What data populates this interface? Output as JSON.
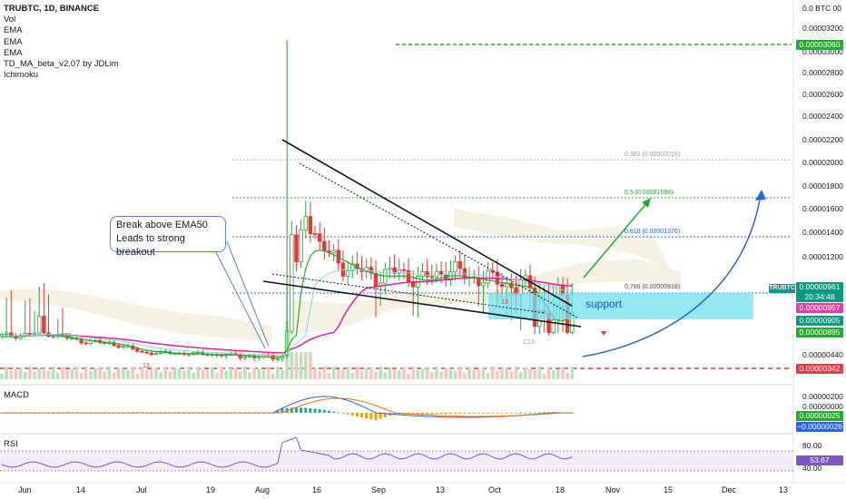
{
  "legend": {
    "symbol": "TRUBTC, 1D, BINANCE",
    "indicators": [
      "Vol",
      "EMA",
      "EMA",
      "EMA",
      "TD_MA_beta_v2.07 by JDLim",
      "Ichimoku"
    ]
  },
  "price_scale": {
    "unit": "0.0 BTC 00",
    "ticks": [
      "0.00003200",
      "0.00003000",
      "0.00002800",
      "0.00002600",
      "0.00002400",
      "0.00002200",
      "0.00002000",
      "0.00001800",
      "0.00001600",
      "0.00001400",
      "0.00001200",
      "0.00000440"
    ]
  },
  "badges": [
    {
      "text": "0.00003060",
      "color": "#22ab2f"
    },
    {
      "text": "0.00000961",
      "color": "#089981"
    },
    {
      "text": "20:34:48",
      "color": "#089981"
    },
    {
      "text": "0.00000957",
      "color": "#e040a0"
    },
    {
      "text": "0.00000905",
      "color": "#089981"
    },
    {
      "text": "0.00000895",
      "color": "#22ab2f"
    },
    {
      "text": "0.00000342",
      "color": "#f23645"
    }
  ],
  "ticker_tag": "TRUBTC",
  "fib": {
    "r382": "0.382 (0.00002019)",
    "r5": "0.5 (0.00001698)",
    "r618": "0.618 (0.00001376)",
    "r786": "0.786 (0.00000918)"
  },
  "annotations": {
    "callout_line1": "Break above EMA50",
    "callout_line2": "Leads to strong breakout",
    "support": "support",
    "a13": "A13",
    "c13": "C13",
    "n13a": "13",
    "n13b": "13"
  },
  "macd": {
    "title": "MACD",
    "ticks": [
      "0.00000200",
      "0.00000000"
    ],
    "badges": [
      {
        "text": "0.00000025",
        "color": "#22ab2f"
      },
      {
        "text": "−0.00000026",
        "color": "#2962ff"
      }
    ]
  },
  "rsi": {
    "title": "RSI",
    "ticks": [
      "80.00",
      "40.00"
    ],
    "badge": {
      "text": "53.67",
      "color": "#7e57c2"
    }
  },
  "x_axis": [
    "Jun",
    "14",
    "Jul",
    "19",
    "Aug",
    "16",
    "Sep",
    "13",
    "Oct",
    "18",
    "Nov",
    "15",
    "Dec",
    "13"
  ],
  "chart_data": {
    "type": "candlestick",
    "title": "TRUBTC, 1D, BINANCE",
    "ylim": [
      2.6e-06,
      3.3e-05
    ],
    "key_levels": {
      "high_line": 3.06e-05,
      "last": 9.61e-06,
      "ema_pink": 9.57e-06,
      "low_line": 3.42e-06
    },
    "price_path": [
      [
        0,
        8.2e-06
      ],
      [
        10,
        8.8e-06
      ],
      [
        15,
        7.5e-06
      ],
      [
        25,
        6.5e-06
      ],
      [
        30,
        5e-06
      ],
      [
        40,
        4.8e-06
      ],
      [
        50,
        4.5e-06
      ],
      [
        56,
        4.3e-06
      ],
      [
        60,
        4.4e-06
      ],
      [
        61,
        9e-06
      ],
      [
        62,
        1.4e-05
      ],
      [
        63,
        1.1e-05
      ],
      [
        65,
        1.6e-05
      ],
      [
        68,
        1.3e-05
      ],
      [
        70,
        1.2e-05
      ],
      [
        75,
        1.1e-05
      ],
      [
        80,
        1.05e-05
      ],
      [
        85,
        1.08e-05
      ],
      [
        90,
        1.02e-05
      ],
      [
        95,
        1.1e-05
      ],
      [
        100,
        1.05e-05
      ],
      [
        108,
        1e-05
      ],
      [
        112,
        9.8e-06
      ],
      [
        118,
        9e-06
      ],
      [
        120,
        9.3e-06
      ],
      [
        122,
        9.6e-06
      ]
    ]
  }
}
